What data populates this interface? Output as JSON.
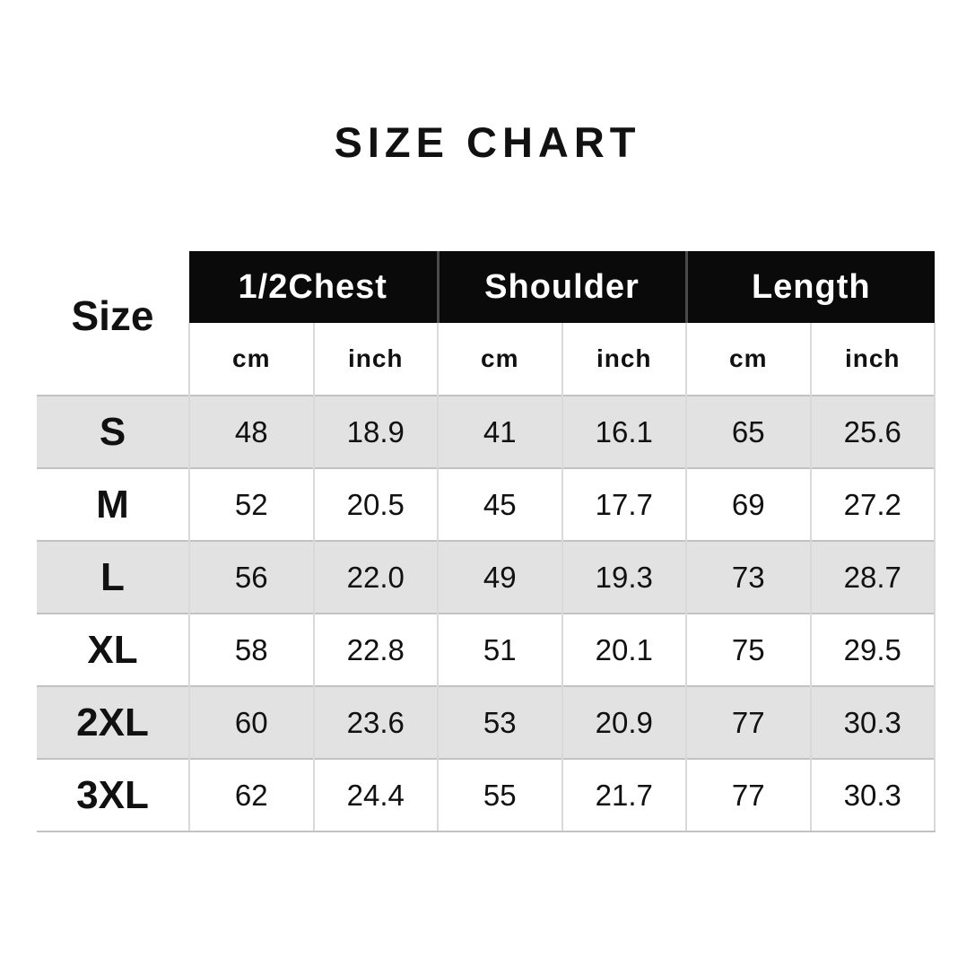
{
  "title": "SIZE CHART",
  "chart_data": {
    "type": "table",
    "title": "SIZE CHART",
    "size_column_header": "Size",
    "section_headers": [
      {
        "label": "1/2Chest"
      },
      {
        "label": "Shoulder"
      },
      {
        "label": "Length"
      }
    ],
    "unit_headers": [
      "cm",
      "inch",
      "cm",
      "inch",
      "cm",
      "inch"
    ],
    "columns": [
      "Size",
      "1/2Chest cm",
      "1/2Chest inch",
      "Shoulder cm",
      "Shoulder inch",
      "Length cm",
      "Length inch"
    ],
    "rows": [
      {
        "size": "S",
        "values": [
          "48",
          "18.9",
          "41",
          "16.1",
          "65",
          "25.6"
        ]
      },
      {
        "size": "M",
        "values": [
          "52",
          "20.5",
          "45",
          "17.7",
          "69",
          "27.2"
        ]
      },
      {
        "size": "L",
        "values": [
          "56",
          "22.0",
          "49",
          "19.3",
          "73",
          "28.7"
        ]
      },
      {
        "size": "XL",
        "values": [
          "58",
          "22.8",
          "51",
          "20.1",
          "75",
          "29.5"
        ]
      },
      {
        "size": "2XL",
        "values": [
          "60",
          "23.6",
          "53",
          "20.9",
          "77",
          "30.3"
        ]
      },
      {
        "size": "3XL",
        "values": [
          "62",
          "24.4",
          "55",
          "21.7",
          "77",
          "30.3"
        ]
      }
    ]
  },
  "colors": {
    "header_bg": "#0a0a0a",
    "header_text": "#ffffff",
    "stripe_bg": "#e2e2e2",
    "row_border": "#c2c2c2",
    "col_divider": "#d9d9d9",
    "header_divider": "#4a4a4a",
    "text_color": "#111111",
    "page_bg": "#ffffff"
  }
}
